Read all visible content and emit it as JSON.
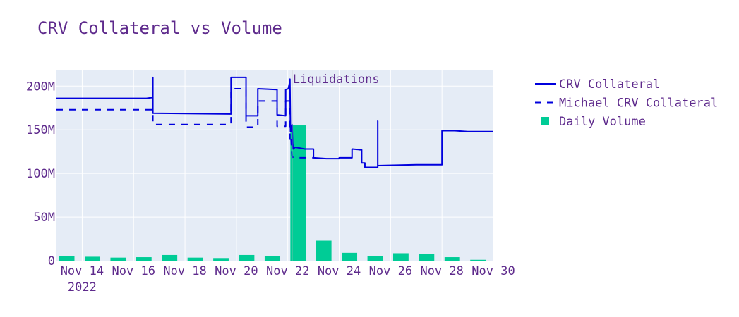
{
  "chart_data": {
    "type": "line",
    "title": "CRV Collateral vs Volume",
    "x_start": "2022-11-13",
    "x_end": "2022-11-30",
    "x_ticks": [
      {
        "date": "2022-11-14",
        "label": "Nov 14"
      },
      {
        "date": "2022-11-16",
        "label": "Nov 16"
      },
      {
        "date": "2022-11-18",
        "label": "Nov 18"
      },
      {
        "date": "2022-11-20",
        "label": "Nov 20"
      },
      {
        "date": "2022-11-22",
        "label": "Nov 22"
      },
      {
        "date": "2022-11-24",
        "label": "Nov 24"
      },
      {
        "date": "2022-11-26",
        "label": "Nov 26"
      },
      {
        "date": "2022-11-28",
        "label": "Nov 28"
      },
      {
        "date": "2022-11-30",
        "label": "Nov 30"
      }
    ],
    "x_year_label": "2022",
    "ylim": [
      0,
      218000000
    ],
    "y_ticks": [
      {
        "value": 0,
        "label": "0"
      },
      {
        "value": 50000000,
        "label": "50M"
      },
      {
        "value": 100000000,
        "label": "100M"
      },
      {
        "value": 150000000,
        "label": "150M"
      },
      {
        "value": 200000000,
        "label": "200M"
      }
    ],
    "grid": true,
    "legend_position": "right",
    "annotation": {
      "date": "2022-11-22T04:00",
      "label": "Liquidations"
    },
    "series": [
      {
        "name": "CRV Collateral",
        "kind": "step-line",
        "color": "#0000dd",
        "dash": "solid",
        "points": [
          [
            "2022-11-13T00:00",
            186000000
          ],
          [
            "2022-11-16T12:00",
            186000000
          ],
          [
            "2022-11-16T18:00",
            187000000
          ],
          [
            "2022-11-16T18:01",
            210000000
          ],
          [
            "2022-11-16T18:02",
            169000000
          ],
          [
            "2022-11-19T19:00",
            168000000
          ],
          [
            "2022-11-19T19:01",
            210000000
          ],
          [
            "2022-11-20T09:00",
            210000000
          ],
          [
            "2022-11-20T09:01",
            166000000
          ],
          [
            "2022-11-20T20:00",
            166000000
          ],
          [
            "2022-11-20T20:01",
            197000000
          ],
          [
            "2022-11-21T14:00",
            196000000
          ],
          [
            "2022-11-21T14:01",
            167000000
          ],
          [
            "2022-11-21T22:00",
            166000000
          ],
          [
            "2022-11-21T22:01",
            196000000
          ],
          [
            "2022-11-22T00:30",
            197000000
          ],
          [
            "2022-11-22T01:30",
            203000000
          ],
          [
            "2022-11-22T02:00",
            208000000
          ],
          [
            "2022-11-22T02:30",
            148000000
          ],
          [
            "2022-11-22T03:00",
            155000000
          ],
          [
            "2022-11-22T03:30",
            148000000
          ],
          [
            "2022-11-22T04:00",
            156000000
          ],
          [
            "2022-11-22T04:30",
            135000000
          ],
          [
            "2022-11-22T05:00",
            128000000
          ],
          [
            "2022-11-22T07:00",
            130000000
          ],
          [
            "2022-11-22T16:00",
            128000000
          ],
          [
            "2022-11-23T00:00",
            128000000
          ],
          [
            "2022-11-23T00:01",
            118000000
          ],
          [
            "2022-11-23T12:00",
            117000000
          ],
          [
            "2022-11-24T00:00",
            117000000
          ],
          [
            "2022-11-24T00:01",
            118000000
          ],
          [
            "2022-11-24T12:00",
            118000000
          ],
          [
            "2022-11-24T12:01",
            128000000
          ],
          [
            "2022-11-24T21:00",
            127000000
          ],
          [
            "2022-11-24T21:01",
            112000000
          ],
          [
            "2022-11-25T00:00",
            112000000
          ],
          [
            "2022-11-25T00:01",
            107000000
          ],
          [
            "2022-11-25T12:00",
            107000000
          ],
          [
            "2022-11-25T12:01",
            160000000
          ],
          [
            "2022-11-25T12:02",
            109000000
          ],
          [
            "2022-11-27T00:00",
            110000000
          ],
          [
            "2022-11-28T00:00",
            110000000
          ],
          [
            "2022-11-28T00:01",
            149000000
          ],
          [
            "2022-11-28T12:00",
            149000000
          ],
          [
            "2022-11-29T00:00",
            148000000
          ],
          [
            "2022-11-30T00:00",
            148000000
          ]
        ]
      },
      {
        "name": "Michael CRV Collateral",
        "kind": "step-line",
        "color": "#0000dd",
        "dash": "dashed",
        "points": [
          [
            "2022-11-13T00:00",
            173000000
          ],
          [
            "2022-11-16T18:00",
            173000000
          ],
          [
            "2022-11-16T18:01",
            156000000
          ],
          [
            "2022-11-19T19:00",
            156000000
          ],
          [
            "2022-11-19T19:01",
            197000000
          ],
          [
            "2022-11-20T09:00",
            197000000
          ],
          [
            "2022-11-20T09:01",
            153000000
          ],
          [
            "2022-11-20T20:00",
            153000000
          ],
          [
            "2022-11-20T20:01",
            183000000
          ],
          [
            "2022-11-21T14:00",
            183000000
          ],
          [
            "2022-11-21T14:01",
            154000000
          ],
          [
            "2022-11-21T22:00",
            154000000
          ],
          [
            "2022-11-21T22:01",
            183000000
          ],
          [
            "2022-11-22T02:00",
            183000000
          ],
          [
            "2022-11-22T02:01",
            136000000
          ],
          [
            "2022-11-22T03:00",
            140000000
          ],
          [
            "2022-11-22T04:00",
            120000000
          ],
          [
            "2022-11-22T05:00",
            118000000
          ],
          [
            "2022-11-23T00:00",
            118000000
          ]
        ]
      },
      {
        "name": "Daily Volume",
        "kind": "bar",
        "color": "#00cc96",
        "points": [
          [
            "2022-11-13",
            5000000
          ],
          [
            "2022-11-14",
            4500000
          ],
          [
            "2022-11-15",
            3500000
          ],
          [
            "2022-11-16",
            4000000
          ],
          [
            "2022-11-17",
            6500000
          ],
          [
            "2022-11-18",
            3500000
          ],
          [
            "2022-11-19",
            3000000
          ],
          [
            "2022-11-20",
            6500000
          ],
          [
            "2022-11-21",
            5000000
          ],
          [
            "2022-11-22",
            155000000
          ],
          [
            "2022-11-23",
            23000000
          ],
          [
            "2022-11-24",
            9000000
          ],
          [
            "2022-11-25",
            5500000
          ],
          [
            "2022-11-26",
            8500000
          ],
          [
            "2022-11-27",
            7500000
          ],
          [
            "2022-11-28",
            4000000
          ],
          [
            "2022-11-29",
            1000000
          ]
        ]
      }
    ]
  }
}
